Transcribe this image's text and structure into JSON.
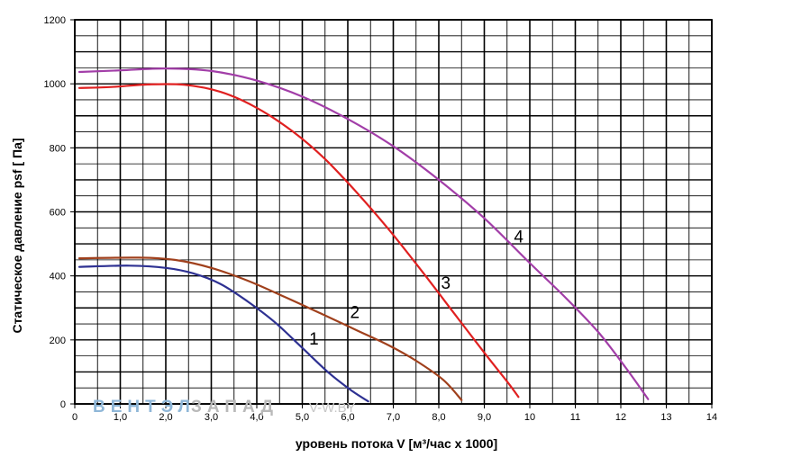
{
  "chart_data": {
    "type": "line",
    "xlabel": "уровень потока  V [м³/час x 1000]",
    "ylabel": "Статическое давление  psf [ Па]",
    "xlim": [
      0,
      14
    ],
    "ylim": [
      0,
      1200
    ],
    "x_ticks": [
      "0",
      "1,0",
      "2,0",
      "3,0",
      "4,0",
      "5,0",
      "6,0",
      "7,0",
      "8,0",
      "9,0",
      "10",
      "11",
      "12",
      "13",
      "14"
    ],
    "y_ticks": [
      "0",
      "200",
      "400",
      "600",
      "800",
      "1000",
      "1200"
    ],
    "grid": true,
    "series": [
      {
        "name": "1",
        "color": "#2e3192",
        "points": [
          [
            0.1,
            428
          ],
          [
            1.2,
            432
          ],
          [
            2.0,
            425
          ],
          [
            2.6,
            408
          ],
          [
            3.2,
            375
          ],
          [
            3.8,
            320
          ],
          [
            4.4,
            255
          ],
          [
            5.0,
            175
          ],
          [
            5.6,
            95
          ],
          [
            6.1,
            40
          ],
          [
            6.45,
            8
          ]
        ]
      },
      {
        "name": "2",
        "color": "#a0401c",
        "points": [
          [
            0.1,
            455
          ],
          [
            1.4,
            457
          ],
          [
            2.2,
            450
          ],
          [
            3.0,
            425
          ],
          [
            3.8,
            385
          ],
          [
            4.6,
            335
          ],
          [
            5.4,
            283
          ],
          [
            6.2,
            230
          ],
          [
            6.9,
            183
          ],
          [
            7.5,
            135
          ],
          [
            8.1,
            75
          ],
          [
            8.5,
            12
          ]
        ]
      },
      {
        "name": "3",
        "color": "#e02020",
        "points": [
          [
            0.1,
            987
          ],
          [
            0.8,
            990
          ],
          [
            1.6,
            998
          ],
          [
            2.4,
            997
          ],
          [
            3.2,
            975
          ],
          [
            4.0,
            925
          ],
          [
            4.8,
            850
          ],
          [
            5.5,
            765
          ],
          [
            6.2,
            660
          ],
          [
            6.9,
            545
          ],
          [
            7.6,
            420
          ],
          [
            8.3,
            290
          ],
          [
            9.0,
            160
          ],
          [
            9.5,
            70
          ],
          [
            9.75,
            22
          ]
        ]
      },
      {
        "name": "4",
        "color": "#a23ea8",
        "points": [
          [
            0.1,
            1037
          ],
          [
            1.0,
            1042
          ],
          [
            2.0,
            1048
          ],
          [
            3.0,
            1040
          ],
          [
            4.0,
            1010
          ],
          [
            5.0,
            960
          ],
          [
            6.0,
            890
          ],
          [
            7.0,
            805
          ],
          [
            8.0,
            700
          ],
          [
            9.0,
            580
          ],
          [
            10.0,
            440
          ],
          [
            10.8,
            330
          ],
          [
            11.5,
            225
          ],
          [
            12.1,
            115
          ],
          [
            12.6,
            15
          ]
        ]
      }
    ],
    "annotations": [
      {
        "text": "1",
        "x": 5.15,
        "y": 185
      },
      {
        "text": "2",
        "x": 6.05,
        "y": 268
      },
      {
        "text": "3",
        "x": 8.05,
        "y": 360
      },
      {
        "text": "4",
        "x": 9.65,
        "y": 505
      }
    ]
  },
  "watermark": {
    "brand_part1": "ВЕНТЭЛ",
    "brand_part2": "ЗАПАД",
    "site": "V-W.BY"
  }
}
